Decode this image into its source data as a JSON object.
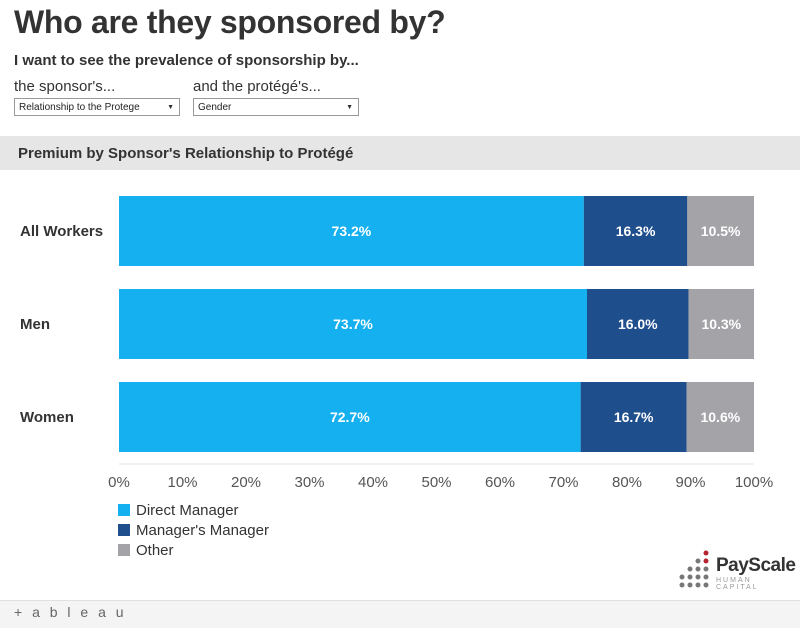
{
  "header": {
    "title": "Who are they sponsored by?",
    "subtitle": "I want to see the prevalence of sponsorship by..."
  },
  "filters": {
    "sponsor": {
      "label": "the sponsor's...",
      "value": "Relationship to the Protege"
    },
    "protege": {
      "label": "and the protégé's...",
      "value": "Gender"
    }
  },
  "section_title": "Premium by Sponsor's Relationship to Protégé",
  "colors": {
    "direct_manager": "#14b0ef",
    "managers_manager": "#1f4e8c",
    "other": "#a3a3a8"
  },
  "chart_data": {
    "type": "bar",
    "orientation": "horizontal",
    "stacked": true,
    "categories": [
      "All Workers",
      "Men",
      "Women"
    ],
    "series": [
      {
        "name": "Direct Manager",
        "values": [
          73.2,
          73.7,
          72.7
        ],
        "labels": [
          "73.2%",
          "73.7%",
          "72.7%"
        ]
      },
      {
        "name": "Manager's Manager",
        "values": [
          16.3,
          16.0,
          16.7
        ],
        "labels": [
          "16.3%",
          "16.0%",
          "16.7%"
        ]
      },
      {
        "name": "Other",
        "values": [
          10.5,
          10.3,
          10.6
        ],
        "labels": [
          "10.5%",
          "10.3%",
          "10.6%"
        ]
      }
    ],
    "xlim": [
      0,
      100
    ],
    "xticks": [
      "0%",
      "10%",
      "20%",
      "30%",
      "40%",
      "50%",
      "60%",
      "70%",
      "80%",
      "90%",
      "100%"
    ],
    "grid": false,
    "legend_position": "bottom-left"
  },
  "legend": {
    "items": [
      "Direct Manager",
      "Manager's Manager",
      "Other"
    ]
  },
  "logo": {
    "name": "PayScale",
    "tagline": "HUMAN CAPITAL"
  },
  "footer": {
    "brand": "+ a b l e a u"
  }
}
